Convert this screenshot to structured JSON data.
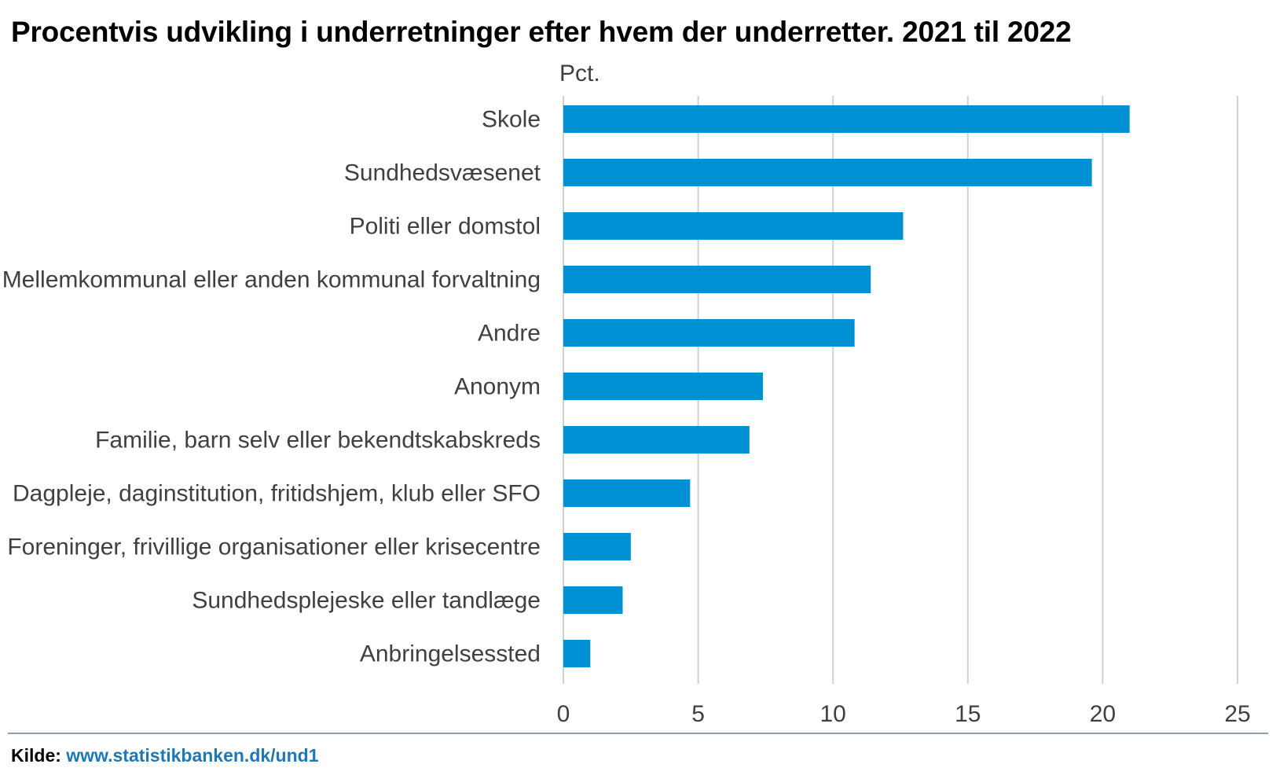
{
  "chart_data": {
    "type": "bar",
    "orientation": "horizontal",
    "title": "Procentvis udvikling i underretninger efter hvem der underretter. 2021 til 2022",
    "unit_label": "Pct.",
    "categories": [
      "Skole",
      "Sundhedsvæsenet",
      "Politi eller domstol",
      "Mellemkommunal eller anden kommunal forvaltning",
      "Andre",
      "Anonym",
      "Familie, barn selv eller bekendtskabskreds",
      "Dagpleje, daginstitution, fritidshjem, klub eller SFO",
      "Foreninger, frivillige organisationer eller krisecentre",
      "Sundhedsplejeske eller tandlæge",
      "Anbringelsessted"
    ],
    "values": [
      21.0,
      19.6,
      12.6,
      11.4,
      10.8,
      7.4,
      6.9,
      4.7,
      2.5,
      2.2,
      1.0
    ],
    "xlim": [
      0,
      25
    ],
    "xticks": [
      "0",
      "5",
      "10",
      "15",
      "20",
      "25"
    ],
    "grid": true,
    "bar_color": "#0091d4",
    "grid_color": "#d0d0d0"
  },
  "source": {
    "prefix": "Kilde:",
    "link": "www.statistikbanken.dk/und1"
  }
}
